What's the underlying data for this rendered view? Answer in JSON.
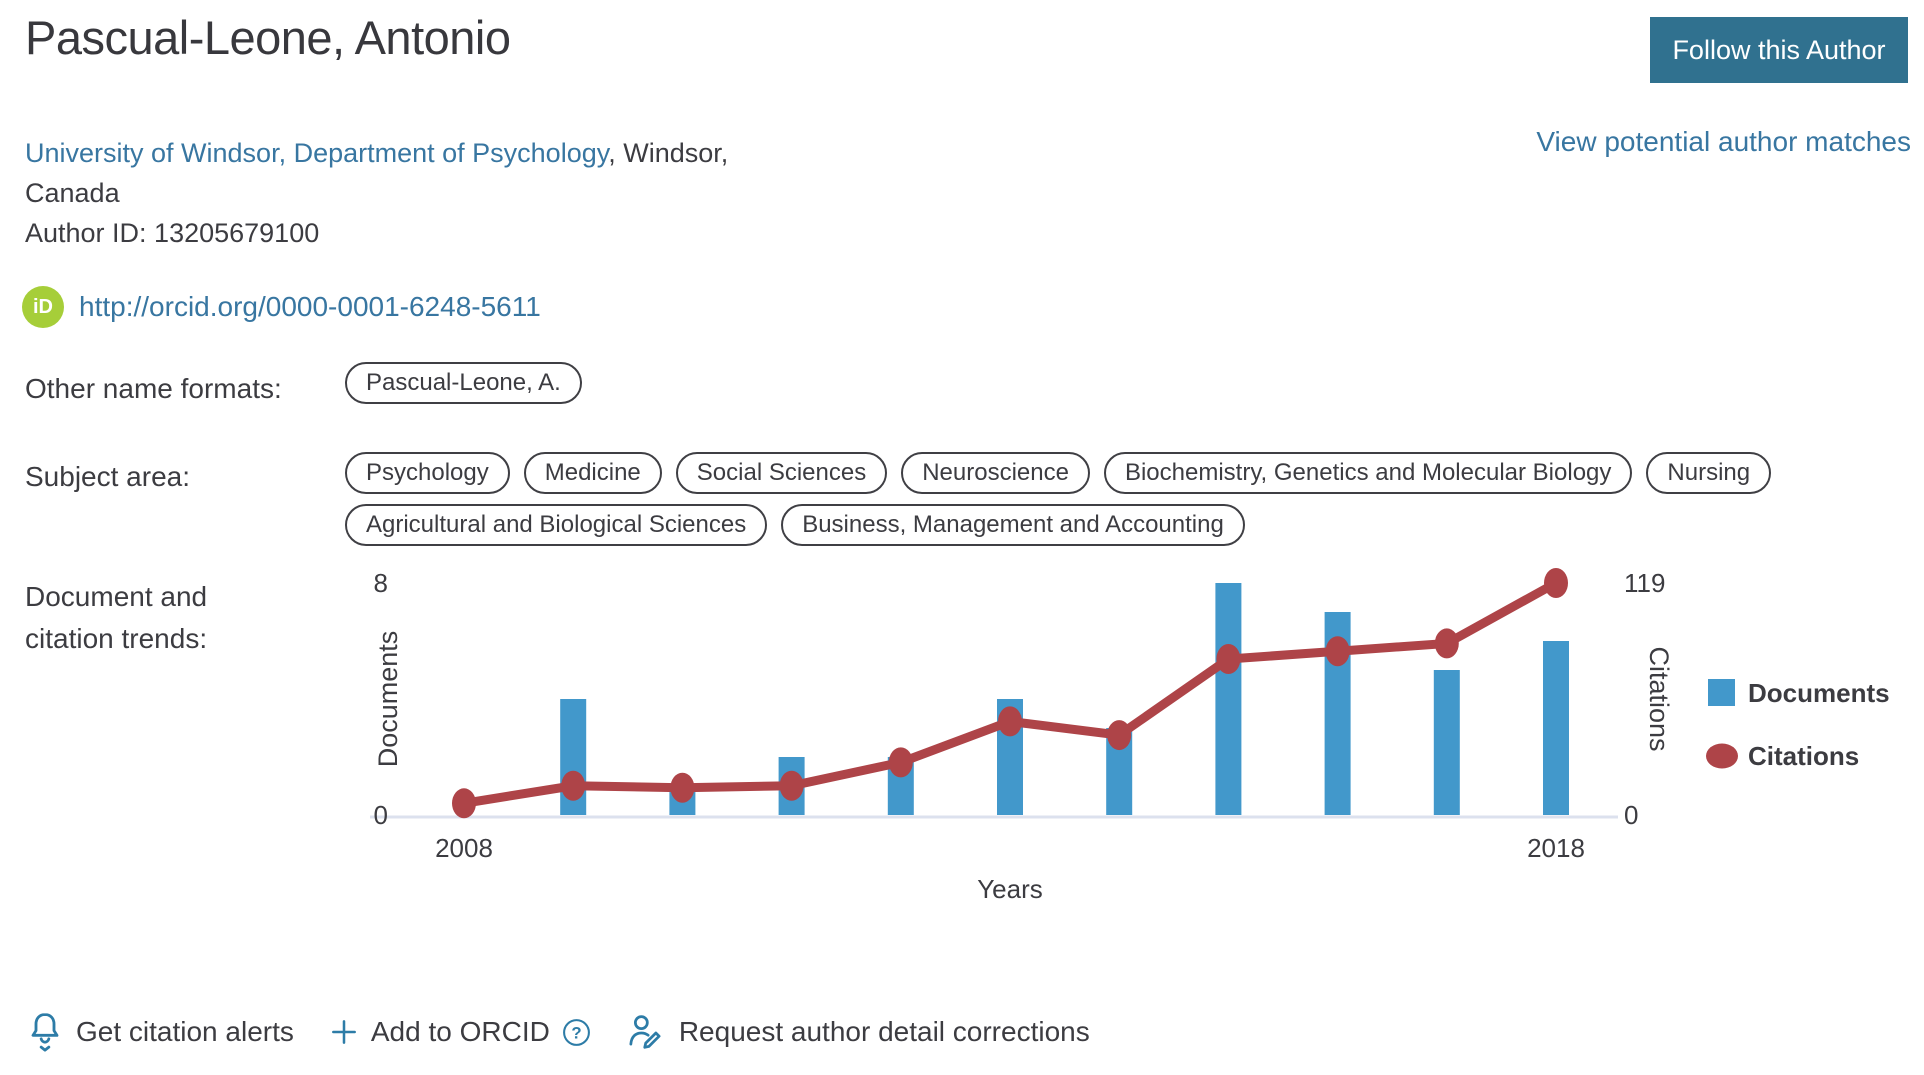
{
  "header": {
    "title": "Pascual-Leone, Antonio",
    "follow_button": "Follow this Author",
    "view_matches_link": "View potential author matches"
  },
  "profile": {
    "affiliation_link": "University of Windsor, Department of Psychology",
    "affiliation_rest": ", Windsor,",
    "affiliation_country": "Canada",
    "author_id": "Author ID: 13205679100",
    "orcid_icon_text": "iD",
    "orcid_url": "http://orcid.org/0000-0001-6248-5611"
  },
  "other_names": {
    "label": "Other name formats:",
    "names": [
      "Pascual-Leone, A."
    ]
  },
  "subject_area": {
    "label": "Subject area:",
    "subjects": [
      "Psychology",
      "Medicine",
      "Social Sciences",
      "Neuroscience",
      "Biochemistry, Genetics and Molecular Biology",
      "Nursing",
      "Agricultural and Biological Sciences",
      "Business, Management and Accounting"
    ]
  },
  "trends": {
    "label_line1": "Document and",
    "label_line2": "citation trends:"
  },
  "chart_data": {
    "type": "bar+line combo",
    "x": [
      2008,
      2009,
      2010,
      2011,
      2012,
      2013,
      2014,
      2015,
      2016,
      2017,
      2018
    ],
    "series": [
      {
        "name": "Documents",
        "type": "bar",
        "axis": "left",
        "color": "#4298cb",
        "values": [
          0,
          4,
          1,
          2,
          2,
          4,
          3,
          8,
          7,
          5,
          6
        ]
      },
      {
        "name": "Citations",
        "type": "line",
        "axis": "right",
        "color": "#ae4448",
        "values": [
          6,
          15,
          14,
          15,
          27,
          48,
          41,
          80,
          84,
          88,
          119
        ]
      }
    ],
    "left_axis": {
      "label": "Documents",
      "ticks": [
        0,
        8
      ],
      "max": 8
    },
    "right_axis": {
      "label": "Citations",
      "ticks": [
        0,
        119
      ],
      "max": 119
    },
    "x_axis": {
      "label": "Years",
      "tick_labels": [
        "2008",
        "2018"
      ]
    },
    "legend": [
      {
        "label": "Documents",
        "shape": "square",
        "color": "#4298cb"
      },
      {
        "label": "Citations",
        "shape": "circle",
        "color": "#ae4448"
      }
    ],
    "grid": false,
    "legend_position": "right"
  },
  "actions": [
    {
      "label": "Get citation alerts",
      "icon": "bell-icon"
    },
    {
      "label": "Add to ORCID",
      "icon": "plus-icon",
      "suffix_icon": "help-icon"
    },
    {
      "label": "Request author detail corrections",
      "icon": "edit-author-icon"
    }
  ],
  "colors": {
    "text_dark": "#3c3c41",
    "accent_link": "#3876a1",
    "button_bg": "#30718f",
    "orcid_green": "#a6ce39",
    "icon_teal": "#2d7ca7",
    "bar_blue": "#4298cb",
    "line_red": "#ae4448",
    "baseline": "#dce1ee"
  }
}
